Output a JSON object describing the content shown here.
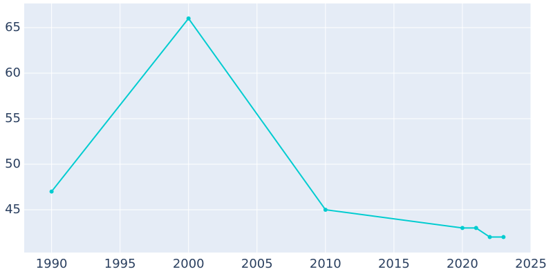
{
  "chart_data": {
    "type": "line",
    "x": [
      1990,
      2000,
      2010,
      2020,
      2021,
      2022,
      2023
    ],
    "series": [
      {
        "color": "#00ccd0",
        "values": [
          47,
          66,
          45,
          43,
          43,
          42,
          42
        ]
      }
    ],
    "xlim": [
      1988,
      2025
    ],
    "ylim": [
      40.3,
      67.65
    ],
    "xticks": [
      1990,
      1995,
      2000,
      2005,
      2010,
      2015,
      2020,
      2025
    ],
    "yticks": [
      45,
      50,
      55,
      60,
      65
    ],
    "grid": true,
    "background": "#e5ecf6"
  }
}
